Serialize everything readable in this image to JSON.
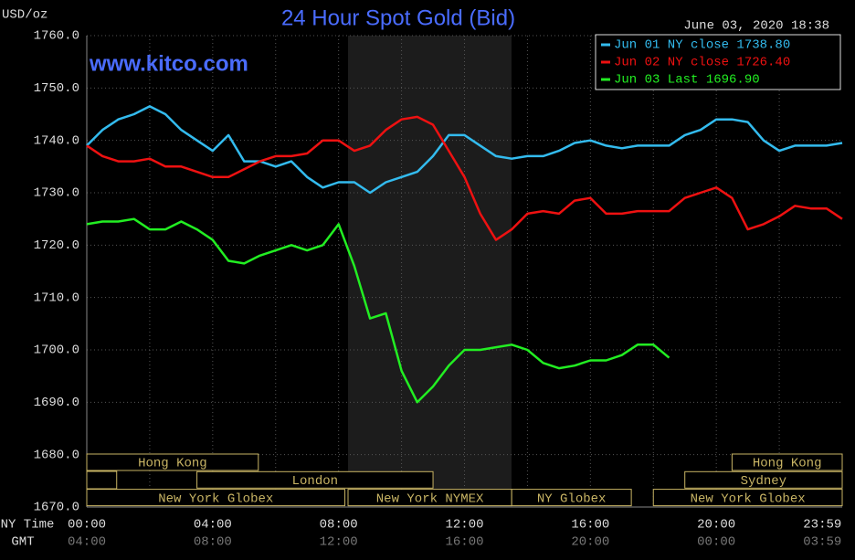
{
  "chart_data": {
    "type": "line",
    "title": "24 Hour Spot Gold (Bid)",
    "timestamp": "June 03, 2020 18:38",
    "y_label": "USD/oz",
    "watermark": "www.kitco.com",
    "x_row_labels": [
      "NY Time",
      "GMT"
    ],
    "x": [
      0,
      0.5,
      1,
      1.5,
      2,
      2.5,
      3,
      3.5,
      4,
      4.5,
      5,
      5.5,
      6,
      6.5,
      7,
      7.5,
      8,
      8.5,
      9,
      9.5,
      10,
      10.5,
      11,
      11.5,
      12,
      12.5,
      13,
      13.5,
      14,
      14.5,
      15,
      15.5,
      16,
      16.5,
      17,
      17.5,
      18,
      18.5,
      19,
      19.5,
      20,
      20.5,
      21,
      21.5,
      22,
      22.5,
      23,
      23.5,
      24
    ],
    "series": [
      {
        "name": "Jun 01 NY close 1738.80",
        "color": "#33bbee",
        "values": [
          1739,
          1742,
          1744,
          1745,
          1746.5,
          1745,
          1742,
          1740,
          1738,
          1741,
          1736,
          1736,
          1735,
          1736,
          1733,
          1731,
          1732,
          1732,
          1730,
          1732,
          1733,
          1734,
          1737,
          1741,
          1741,
          1739,
          1737,
          1736.5,
          1737,
          1737,
          1738,
          1739.5,
          1740,
          1739,
          1738.5,
          1739,
          1739,
          1739,
          1741,
          1742,
          1744,
          1744,
          1743.5,
          1740,
          1738,
          1739,
          1739,
          1739,
          1739.5
        ]
      },
      {
        "name": "Jun 02 NY close 1726.40",
        "color": "#ee1111",
        "values": [
          1739,
          1737,
          1736,
          1736,
          1736.5,
          1735,
          1735,
          1734,
          1733,
          1733,
          1734.5,
          1736,
          1737,
          1737,
          1737.5,
          1740,
          1740,
          1738,
          1739,
          1742,
          1744,
          1744.5,
          1743,
          1738,
          1733,
          1726,
          1721,
          1723,
          1726,
          1726.5,
          1726,
          1728.5,
          1729,
          1726,
          1726,
          1726.5,
          1726.5,
          1726.5,
          1729,
          1730,
          1731,
          1729,
          1723,
          1724,
          1725.5,
          1727.5,
          1727,
          1727,
          1725
        ]
      },
      {
        "name": "Jun 03 Last 1696.90",
        "color": "#22ee22",
        "values": [
          1724,
          1724.5,
          1724.5,
          1725,
          1723,
          1723,
          1724.5,
          1723,
          1721,
          1717,
          1716.5,
          1718,
          1719,
          1720,
          1719,
          1720,
          1724,
          1716,
          1706,
          1707,
          1696,
          1690,
          1693,
          1697,
          1700,
          1700,
          1700.5,
          1701,
          1700,
          1697.5,
          1696.5,
          1697,
          1698,
          1698,
          1699,
          1701,
          1701,
          1698.5,
          null,
          null,
          null,
          null,
          null,
          null,
          null,
          null,
          null,
          null,
          null
        ]
      }
    ],
    "xlim": [
      0,
      24
    ],
    "xticks": [
      {
        "value": 0,
        "label": "00:00"
      },
      {
        "value": 4,
        "label": "04:00"
      },
      {
        "value": 8,
        "label": "08:00"
      },
      {
        "value": 12,
        "label": "12:00"
      },
      {
        "value": 16,
        "label": "16:00"
      },
      {
        "value": 20,
        "label": "20:00"
      },
      {
        "value": 23.98,
        "label": "23:59"
      }
    ],
    "gmt_ticks": [
      "04:00",
      "08:00",
      "12:00",
      "16:00",
      "20:00",
      "00:00",
      "03:59"
    ],
    "ylim": [
      1670,
      1760
    ],
    "yticks": [
      {
        "value": 1670,
        "label": "1670.0"
      },
      {
        "value": 1680,
        "label": "1680.0"
      },
      {
        "value": 1690,
        "label": "1690.0"
      },
      {
        "value": 1700,
        "label": "1700.0"
      },
      {
        "value": 1710,
        "label": "1710.0"
      },
      {
        "value": 1720,
        "label": "1720.0"
      },
      {
        "value": 1730,
        "label": "1730.0"
      },
      {
        "value": 1740,
        "label": "1740.0"
      },
      {
        "value": 1750,
        "label": "1750.0"
      },
      {
        "value": 1760,
        "label": "1760.0"
      }
    ],
    "grid": true,
    "sessions": [
      "Hong Kong",
      "Hong Kong",
      "London",
      "Sydney",
      "New York Globex",
      "New York NYMEX",
      "NY Globex",
      "New York Globex"
    ]
  }
}
